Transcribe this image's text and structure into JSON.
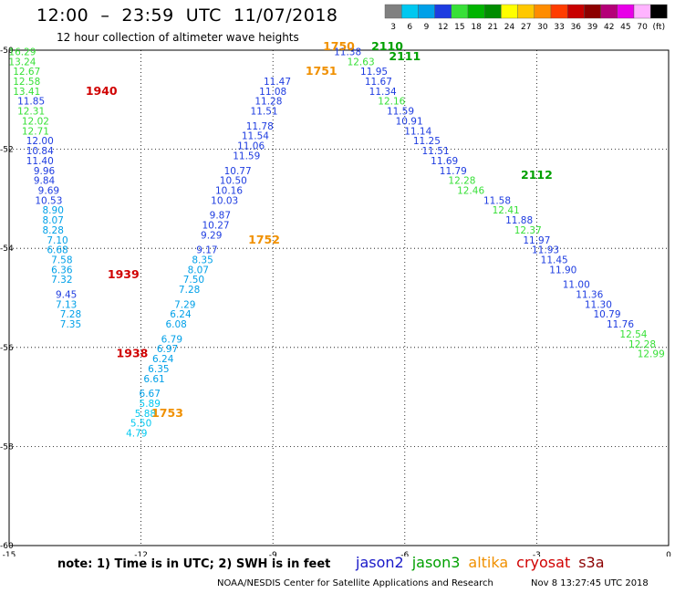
{
  "header": {
    "title": "12:00  –  23:59  UTC  11/07/2018",
    "subtitle": "12 hour collection of altimeter wave heights"
  },
  "colorbar": {
    "ticks": [
      "3",
      "6",
      "9",
      "12",
      "15",
      "18",
      "21",
      "24",
      "27",
      "30",
      "33",
      "36",
      "39",
      "42",
      "45",
      "70",
      "(ft)"
    ],
    "colors": [
      "#808080",
      "#00c8f0",
      "#00a0e8",
      "#1e3ce0",
      "#38e038",
      "#00b400",
      "#008c00",
      "#ffff00",
      "#ffc800",
      "#ff8c00",
      "#ff3c00",
      "#c80000",
      "#8c0000",
      "#b40078",
      "#e800e8",
      "#ffb4ff",
      "#000000"
    ]
  },
  "note": "note:  1) Time is in UTC;  2) SWH is in feet",
  "legend": [
    {
      "label": "jason2",
      "color": "#1818c8"
    },
    {
      "label": "jason3",
      "color": "#00a000"
    },
    {
      "label": "altika",
      "color": "#f09000"
    },
    {
      "label": "cryosat",
      "color": "#d00000"
    },
    {
      "label": "s3a",
      "color": "#8c0000"
    }
  ],
  "credit": "NOAA/NESDIS Center for Satellite Applications and Research",
  "timestamp": "Nov  8 13:27:45 UTC 2018",
  "chart_data": {
    "type": "scatter",
    "xlim": [
      -15,
      0
    ],
    "ylim": [
      -60,
      -50
    ],
    "xticks": [
      "-15",
      "-12",
      "-9",
      "-6",
      "-3",
      "0"
    ],
    "yticks": [
      "-50",
      "-52",
      "-54",
      "-56",
      "-58",
      "-60"
    ],
    "grid": true,
    "pass_labels": [
      {
        "label": "1940",
        "x": -12.9,
        "y": -50.9,
        "color": "#d00000"
      },
      {
        "label": "1939",
        "x": -12.4,
        "y": -54.6,
        "color": "#d00000"
      },
      {
        "label": "1938",
        "x": -12.2,
        "y": -56.2,
        "color": "#d00000"
      },
      {
        "label": "1753",
        "x": -11.4,
        "y": -57.4,
        "color": "#f09000"
      },
      {
        "label": "1752",
        "x": -9.2,
        "y": -53.9,
        "color": "#f09000"
      },
      {
        "label": "1751",
        "x": -7.9,
        "y": -50.5,
        "color": "#f09000"
      },
      {
        "label": "1750",
        "x": -7.5,
        "y": -50.0,
        "color": "#f09000"
      },
      {
        "label": "2110",
        "x": -6.4,
        "y": -50.0,
        "color": "#00a000"
      },
      {
        "label": "2111",
        "x": -6.0,
        "y": -50.2,
        "color": "#00a000"
      },
      {
        "label": "2112",
        "x": -3.0,
        "y": -52.6,
        "color": "#00a000"
      }
    ],
    "series": [
      {
        "points": [
          {
            "x": -14.7,
            "y": -50.1,
            "v": "16.29",
            "c": "#38e038"
          },
          {
            "x": -14.7,
            "y": -50.3,
            "v": "13.24",
            "c": "#38e038"
          },
          {
            "x": -14.6,
            "y": -50.5,
            "v": "12.67",
            "c": "#38e038"
          },
          {
            "x": -14.6,
            "y": -50.7,
            "v": "12.58",
            "c": "#38e038"
          },
          {
            "x": -14.6,
            "y": -50.9,
            "v": "13.41",
            "c": "#38e038"
          },
          {
            "x": -14.5,
            "y": -51.1,
            "v": "11.85",
            "c": "#1e3ce0"
          },
          {
            "x": -14.5,
            "y": -51.3,
            "v": "12.31",
            "c": "#38e038"
          },
          {
            "x": -14.4,
            "y": -51.5,
            "v": "12.02",
            "c": "#38e038"
          },
          {
            "x": -14.4,
            "y": -51.7,
            "v": "12.71",
            "c": "#38e038"
          },
          {
            "x": -14.3,
            "y": -51.9,
            "v": "12.00",
            "c": "#1e3ce0"
          },
          {
            "x": -14.3,
            "y": -52.1,
            "v": "10.84",
            "c": "#1e3ce0"
          },
          {
            "x": -14.3,
            "y": -52.3,
            "v": "11.40",
            "c": "#1e3ce0"
          },
          {
            "x": -14.2,
            "y": -52.5,
            "v": "9.96",
            "c": "#1e3ce0"
          },
          {
            "x": -14.2,
            "y": -52.7,
            "v": "9.84",
            "c": "#1e3ce0"
          },
          {
            "x": -14.1,
            "y": -52.9,
            "v": "9.69",
            "c": "#1e3ce0"
          },
          {
            "x": -14.1,
            "y": -53.1,
            "v": "10.53",
            "c": "#1e3ce0"
          },
          {
            "x": -14.0,
            "y": -53.3,
            "v": "8.90",
            "c": "#00a0e8"
          },
          {
            "x": -14.0,
            "y": -53.5,
            "v": "8.07",
            "c": "#00a0e8"
          },
          {
            "x": -14.0,
            "y": -53.7,
            "v": "8.28",
            "c": "#00a0e8"
          },
          {
            "x": -13.9,
            "y": -53.9,
            "v": "7.10",
            "c": "#00a0e8"
          },
          {
            "x": -13.9,
            "y": -54.1,
            "v": "6.68",
            "c": "#00a0e8"
          },
          {
            "x": -13.8,
            "y": -54.3,
            "v": "7.58",
            "c": "#00a0e8"
          },
          {
            "x": -13.8,
            "y": -54.5,
            "v": "6.36",
            "c": "#00a0e8"
          },
          {
            "x": -13.8,
            "y": -54.7,
            "v": "7.32",
            "c": "#00a0e8"
          },
          {
            "x": -13.7,
            "y": -55.0,
            "v": "9.45",
            "c": "#1e3ce0"
          },
          {
            "x": -13.7,
            "y": -55.2,
            "v": "7.13",
            "c": "#00a0e8"
          },
          {
            "x": -13.6,
            "y": -55.4,
            "v": "7.28",
            "c": "#00a0e8"
          },
          {
            "x": -13.6,
            "y": -55.6,
            "v": "7.35",
            "c": "#00a0e8"
          }
        ]
      },
      {
        "points": [
          {
            "x": -12.1,
            "y": -57.8,
            "v": "4.79",
            "c": "#00c8f0"
          },
          {
            "x": -12.0,
            "y": -57.6,
            "v": "5.50",
            "c": "#00c8f0"
          },
          {
            "x": -11.9,
            "y": -57.4,
            "v": "5.88",
            "c": "#00c8f0"
          },
          {
            "x": -11.8,
            "y": -57.2,
            "v": "5.89",
            "c": "#00c8f0"
          },
          {
            "x": -11.8,
            "y": -57.0,
            "v": "6.67",
            "c": "#00a0e8"
          },
          {
            "x": -11.7,
            "y": -56.7,
            "v": "6.61",
            "c": "#00a0e8"
          },
          {
            "x": -11.6,
            "y": -56.5,
            "v": "6.35",
            "c": "#00a0e8"
          },
          {
            "x": -11.5,
            "y": -56.3,
            "v": "6.24",
            "c": "#00a0e8"
          },
          {
            "x": -11.4,
            "y": -56.1,
            "v": "6.97",
            "c": "#00a0e8"
          },
          {
            "x": -11.3,
            "y": -55.9,
            "v": "6.79",
            "c": "#00a0e8"
          },
          {
            "x": -11.2,
            "y": -55.6,
            "v": "6.08",
            "c": "#00a0e8"
          },
          {
            "x": -11.1,
            "y": -55.4,
            "v": "6.24",
            "c": "#00a0e8"
          },
          {
            "x": -11.0,
            "y": -55.2,
            "v": "7.29",
            "c": "#00a0e8"
          },
          {
            "x": -10.9,
            "y": -54.9,
            "v": "7.28",
            "c": "#00a0e8"
          },
          {
            "x": -10.8,
            "y": -54.7,
            "v": "7.50",
            "c": "#00a0e8"
          },
          {
            "x": -10.7,
            "y": -54.5,
            "v": "8.07",
            "c": "#00a0e8"
          },
          {
            "x": -10.6,
            "y": -54.3,
            "v": "8.35",
            "c": "#00a0e8"
          },
          {
            "x": -10.5,
            "y": -54.1,
            "v": "9.17",
            "c": "#1e3ce0"
          },
          {
            "x": -10.4,
            "y": -53.8,
            "v": "9.29",
            "c": "#1e3ce0"
          },
          {
            "x": -10.3,
            "y": -53.6,
            "v": "10.27",
            "c": "#1e3ce0"
          },
          {
            "x": -10.2,
            "y": -53.4,
            "v": "9.87",
            "c": "#1e3ce0"
          },
          {
            "x": -10.1,
            "y": -53.1,
            "v": "10.03",
            "c": "#1e3ce0"
          },
          {
            "x": -10.0,
            "y": -52.9,
            "v": "10.16",
            "c": "#1e3ce0"
          },
          {
            "x": -9.9,
            "y": -52.7,
            "v": "10.50",
            "c": "#1e3ce0"
          },
          {
            "x": -9.8,
            "y": -52.5,
            "v": "10.77",
            "c": "#1e3ce0"
          },
          {
            "x": -9.6,
            "y": -52.2,
            "v": "11.59",
            "c": "#1e3ce0"
          },
          {
            "x": -9.5,
            "y": -52.0,
            "v": "11.06",
            "c": "#1e3ce0"
          },
          {
            "x": -9.4,
            "y": -51.8,
            "v": "11.54",
            "c": "#1e3ce0"
          },
          {
            "x": -9.3,
            "y": -51.6,
            "v": "11.78",
            "c": "#1e3ce0"
          },
          {
            "x": -9.2,
            "y": -51.3,
            "v": "11.51",
            "c": "#1e3ce0"
          },
          {
            "x": -9.1,
            "y": -51.1,
            "v": "11.28",
            "c": "#1e3ce0"
          },
          {
            "x": -9.0,
            "y": -50.9,
            "v": "11.08",
            "c": "#1e3ce0"
          },
          {
            "x": -8.9,
            "y": -50.7,
            "v": "11.47",
            "c": "#1e3ce0"
          }
        ]
      },
      {
        "points": [
          {
            "x": -7.3,
            "y": -50.1,
            "v": "11.38",
            "c": "#1e3ce0"
          },
          {
            "x": -7.0,
            "y": -50.3,
            "v": "12.63",
            "c": "#38e038"
          },
          {
            "x": -6.7,
            "y": -50.5,
            "v": "11.95",
            "c": "#1e3ce0"
          },
          {
            "x": -6.6,
            "y": -50.7,
            "v": "11.67",
            "c": "#1e3ce0"
          },
          {
            "x": -6.5,
            "y": -50.9,
            "v": "11.34",
            "c": "#1e3ce0"
          },
          {
            "x": -6.3,
            "y": -51.1,
            "v": "12.16",
            "c": "#38e038"
          },
          {
            "x": -6.1,
            "y": -51.3,
            "v": "11.59",
            "c": "#1e3ce0"
          },
          {
            "x": -5.9,
            "y": -51.5,
            "v": "10.91",
            "c": "#1e3ce0"
          },
          {
            "x": -5.7,
            "y": -51.7,
            "v": "11.14",
            "c": "#1e3ce0"
          },
          {
            "x": -5.5,
            "y": -51.9,
            "v": "11.25",
            "c": "#1e3ce0"
          },
          {
            "x": -5.3,
            "y": -52.1,
            "v": "11.51",
            "c": "#1e3ce0"
          },
          {
            "x": -5.1,
            "y": -52.3,
            "v": "11.69",
            "c": "#1e3ce0"
          },
          {
            "x": -4.9,
            "y": -52.5,
            "v": "11.79",
            "c": "#1e3ce0"
          },
          {
            "x": -4.7,
            "y": -52.7,
            "v": "12.28",
            "c": "#38e038"
          },
          {
            "x": -4.5,
            "y": -52.9,
            "v": "12.46",
            "c": "#38e038"
          },
          {
            "x": -3.9,
            "y": -53.1,
            "v": "11.58",
            "c": "#1e3ce0"
          },
          {
            "x": -3.7,
            "y": -53.3,
            "v": "12.41",
            "c": "#38e038"
          },
          {
            "x": -3.4,
            "y": -53.5,
            "v": "11.88",
            "c": "#1e3ce0"
          },
          {
            "x": -3.2,
            "y": -53.7,
            "v": "12.37",
            "c": "#38e038"
          },
          {
            "x": -3.0,
            "y": -53.9,
            "v": "11.97",
            "c": "#1e3ce0"
          },
          {
            "x": -2.8,
            "y": -54.1,
            "v": "11.93",
            "c": "#1e3ce0"
          },
          {
            "x": -2.6,
            "y": -54.3,
            "v": "11.45",
            "c": "#1e3ce0"
          },
          {
            "x": -2.4,
            "y": -54.5,
            "v": "11.90",
            "c": "#1e3ce0"
          },
          {
            "x": -2.1,
            "y": -54.8,
            "v": "11.00",
            "c": "#1e3ce0"
          },
          {
            "x": -1.8,
            "y": -55.0,
            "v": "11.36",
            "c": "#1e3ce0"
          },
          {
            "x": -1.6,
            "y": -55.2,
            "v": "11.30",
            "c": "#1e3ce0"
          },
          {
            "x": -1.4,
            "y": -55.4,
            "v": "10.79",
            "c": "#1e3ce0"
          },
          {
            "x": -1.1,
            "y": -55.6,
            "v": "11.76",
            "c": "#1e3ce0"
          },
          {
            "x": -0.8,
            "y": -55.8,
            "v": "12.54",
            "c": "#38e038"
          },
          {
            "x": -0.6,
            "y": -56.0,
            "v": "12.28",
            "c": "#38e038"
          },
          {
            "x": -0.4,
            "y": -56.2,
            "v": "12.99",
            "c": "#38e038"
          }
        ]
      }
    ]
  }
}
